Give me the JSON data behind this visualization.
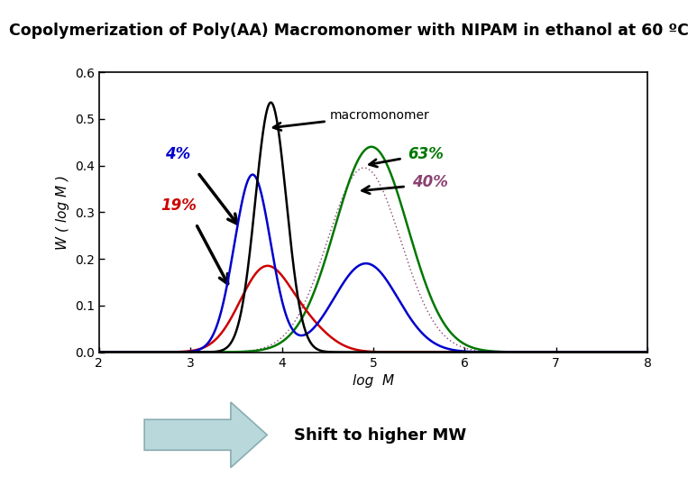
{
  "title": "Copolymerization of Poly(AA) Macromonomer with NIPAM in ethanol at 60 ºC",
  "title_bg": "#FFFF00",
  "xlabel": "log  M",
  "ylabel": "W ( log M )",
  "xlim": [
    2,
    8
  ],
  "ylim": [
    0.0,
    0.6
  ],
  "xticks": [
    2,
    3,
    4,
    5,
    6,
    7,
    8
  ],
  "yticks": [
    0.0,
    0.1,
    0.2,
    0.3,
    0.4,
    0.5,
    0.6
  ],
  "curve_macromonomer_color": "#000000",
  "curve_4pct_color": "#0000CC",
  "curve_19pct_color": "#CC0000",
  "curve_63pct_color": "#007700",
  "curve_40pct_color": "#8B4070",
  "annotation_macromonomer": "macromonomer",
  "annotation_4pct": "4%",
  "annotation_19pct": "19%",
  "annotation_63pct": "63%",
  "annotation_40pct": "40%",
  "shift_text": "Shift to higher MW",
  "shift_arrow_color": "#B8D8DC",
  "bg_color": "#FFFFFF",
  "plot_bg": "#FFFFFF",
  "title_fontsize": 12.5,
  "label_fontsize": 10,
  "tick_fontsize": 10,
  "annot_fontsize": 11
}
